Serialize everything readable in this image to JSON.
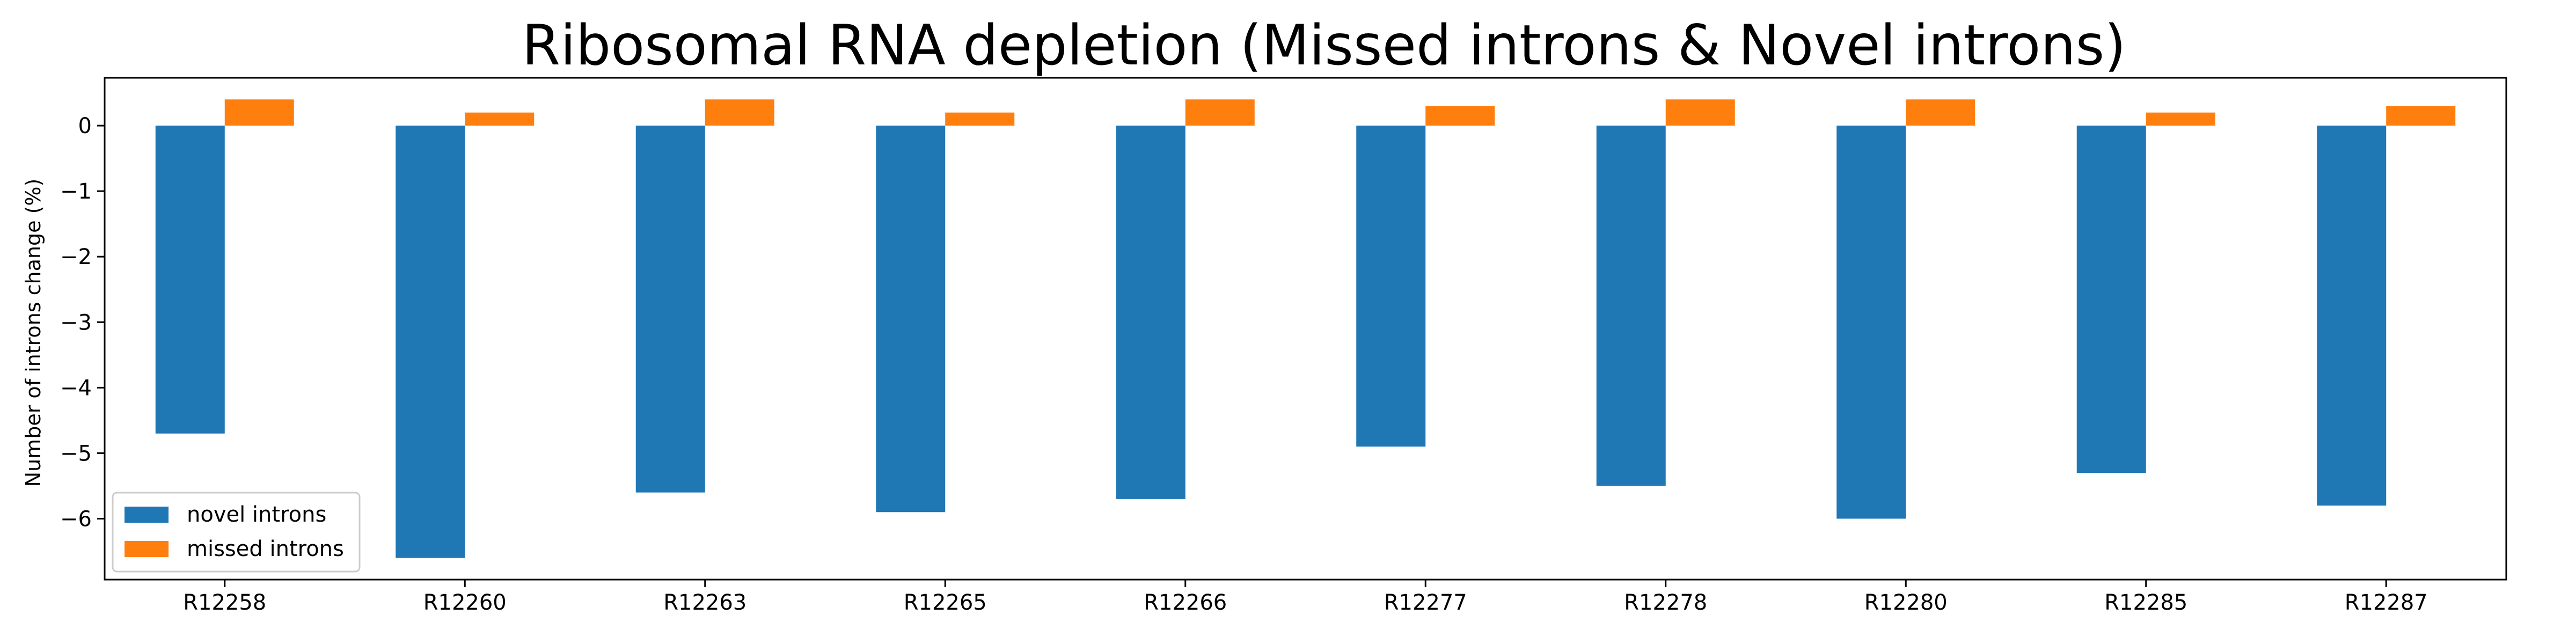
{
  "chart_data": {
    "type": "bar",
    "title": "Ribosomal RNA depletion (Missed introns & Novel introns)",
    "xlabel": "",
    "ylabel": "Number of introns change (%)",
    "categories": [
      "R12258",
      "R12260",
      "R12263",
      "R12265",
      "R12266",
      "R12277",
      "R12278",
      "R12280",
      "R12285",
      "R12287"
    ],
    "series": [
      {
        "name": "novel introns",
        "color": "#1f77b4",
        "values": [
          -4.7,
          -6.6,
          -5.6,
          -5.9,
          -5.7,
          -4.9,
          -5.5,
          -6.0,
          -5.3,
          -5.8
        ]
      },
      {
        "name": "missed introns",
        "color": "#ff7f0e",
        "values": [
          0.4,
          0.2,
          0.4,
          0.2,
          0.4,
          0.3,
          0.4,
          0.4,
          0.2,
          0.3
        ]
      }
    ],
    "ylim": [
      -6.93,
      0.73
    ],
    "yticks": [
      0,
      -1,
      -2,
      -3,
      -4,
      -5,
      -6
    ],
    "ytick_labels": [
      "0",
      "−1",
      "−2",
      "−3",
      "−4",
      "−5",
      "−6"
    ],
    "grid": false,
    "legend": "lower-left"
  }
}
